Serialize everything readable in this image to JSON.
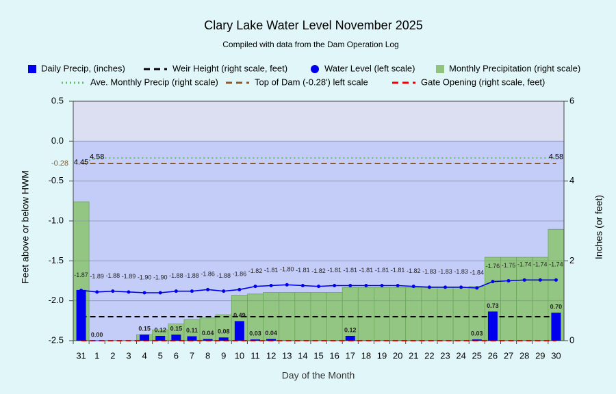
{
  "chart_data": {
    "type": "combo",
    "title": "Clary Lake Water Level November 2025",
    "subtitle": "Compiled with data from the Dam Operation Log",
    "x_label": "Day of the Month",
    "y_label": "Feet above or below HWM",
    "y2_label": "Inches (or feet)",
    "categories": [
      "31",
      "1",
      "2",
      "3",
      "4",
      "5",
      "6",
      "7",
      "8",
      "9",
      "10",
      "11",
      "12",
      "13",
      "14",
      "15",
      "16",
      "17",
      "18",
      "19",
      "20",
      "21",
      "22",
      "23",
      "24",
      "25",
      "26",
      "27",
      "28",
      "29",
      "30"
    ],
    "ylim": [
      -2.5,
      0.5
    ],
    "yticks": [
      -2.5,
      {
        "value": -2,
        "label": "-2.0"
      },
      -1.5,
      {
        "value": -1,
        "label": "-1.0"
      },
      -0.5,
      {
        "value": 0,
        "label": "0.0"
      },
      0.5
    ],
    "y2lim": [
      0,
      6
    ],
    "y2ticks": [
      0,
      2,
      4,
      6
    ],
    "grid": true,
    "series": [
      {
        "name": "Daily Precip, (inches)",
        "kind": "bar",
        "axis": "y2",
        "color": "#0000ee",
        "values": [
          1.27,
          0,
          null,
          null,
          0.15,
          0.12,
          0.15,
          0.11,
          0.04,
          0.08,
          0.49,
          0.03,
          0.04,
          null,
          null,
          null,
          null,
          0.12,
          null,
          null,
          null,
          null,
          null,
          null,
          null,
          0.03,
          0.73,
          null,
          null,
          null,
          0.7
        ],
        "value_labels": [
          null,
          "0.00",
          null,
          null,
          "0.15",
          "0.12",
          "0.15",
          "0.11",
          "0.04",
          "0.08",
          "0.49",
          "0.03",
          "0.04",
          null,
          null,
          null,
          null,
          "0.12",
          null,
          null,
          null,
          null,
          null,
          null,
          null,
          "0.03",
          "0.73",
          null,
          null,
          null,
          "0.70"
        ]
      },
      {
        "name": "Weir Height (right scale, feet)",
        "kind": "dash",
        "axis": "y2",
        "color": "#000000",
        "values": [
          0.6,
          0.6,
          0.6,
          0.6,
          0.6,
          0.6,
          0.6,
          0.6,
          0.6,
          0.6,
          0.6,
          0.6,
          0.6,
          0.6,
          0.6,
          0.6,
          0.6,
          0.6,
          0.6,
          0.6,
          0.6,
          0.6,
          0.6,
          0.6,
          0.6,
          0.6,
          0.6,
          0.6,
          0.6,
          0.6,
          0.6
        ]
      },
      {
        "name": "Water Level (left scale)",
        "kind": "marker-line",
        "color": "#0000ee",
        "values": [
          -1.87,
          -1.89,
          -1.88,
          -1.89,
          -1.9,
          -1.9,
          -1.88,
          -1.88,
          -1.86,
          -1.88,
          -1.86,
          -1.82,
          -1.81,
          -1.8,
          -1.81,
          -1.82,
          -1.81,
          -1.81,
          -1.81,
          -1.81,
          -1.81,
          -1.82,
          -1.83,
          -1.83,
          -1.83,
          -1.84,
          -1.76,
          -1.75,
          -1.74,
          -1.74,
          -1.74
        ],
        "value_labels": [
          "-1.87",
          "-1.89",
          "-1.88",
          "-1.89",
          "-1.90",
          "-1.90",
          "-1.88",
          "-1.88",
          "-1.86",
          "-1.88",
          "-1.86",
          "-1.82",
          "-1.81",
          "-1.80",
          "-1.81",
          "-1.82",
          "-1.81",
          "-1.81",
          "-1.81",
          "-1.81",
          "-1.81",
          "-1.82",
          "-1.83",
          "-1.83",
          "-1.83",
          "-1.84",
          "-1.76",
          "-1.75",
          "-1.74",
          "-1.74",
          "-1.74"
        ]
      },
      {
        "name": "Monthly Precipitation (right scale)",
        "kind": "step-area",
        "axis": "y2",
        "color": "#90c47c",
        "values": [
          3.48,
          0,
          0,
          0,
          0.15,
          0.27,
          0.42,
          0.53,
          0.57,
          0.65,
          1.14,
          1.17,
          1.21,
          1.21,
          1.21,
          1.21,
          1.21,
          1.33,
          1.33,
          1.33,
          1.33,
          1.33,
          1.33,
          1.33,
          1.33,
          1.36,
          2.09,
          2.09,
          2.09,
          2.09,
          2.79
        ]
      },
      {
        "name": "Ave. Monthly Precip (right scale)",
        "kind": "dot",
        "axis": "y2",
        "color": "#66bb66",
        "values": [
          4.45,
          4.58,
          4.58,
          4.58,
          4.58,
          4.58,
          4.58,
          4.58,
          4.58,
          4.58,
          4.58,
          4.58,
          4.58,
          4.58,
          4.58,
          4.58,
          4.58,
          4.58,
          4.58,
          4.58,
          4.58,
          4.58,
          4.58,
          4.58,
          4.58,
          4.58,
          4.58,
          4.58,
          4.58,
          4.58,
          4.58
        ],
        "value_labels": [
          "4.45",
          "4.58",
          null,
          null,
          null,
          null,
          null,
          null,
          null,
          null,
          null,
          null,
          null,
          null,
          null,
          null,
          null,
          null,
          null,
          null,
          null,
          null,
          null,
          null,
          null,
          null,
          null,
          null,
          null,
          null,
          "4.58"
        ]
      },
      {
        "name": "Top of Dam (-0.28') left scale",
        "kind": "dash",
        "color": "#8b5a2b",
        "values": [
          -0.28,
          -0.28,
          -0.28,
          -0.28,
          -0.28,
          -0.28,
          -0.28,
          -0.28,
          -0.28,
          -0.28,
          -0.28,
          -0.28,
          -0.28,
          -0.28,
          -0.28,
          -0.28,
          -0.28,
          -0.28,
          -0.28,
          -0.28,
          -0.28,
          -0.28,
          -0.28,
          -0.28,
          -0.28,
          -0.28,
          -0.28,
          -0.28,
          -0.28,
          -0.28,
          -0.28
        ],
        "value_labels": [
          "-0.28",
          null,
          null,
          null,
          null,
          null,
          null,
          null,
          null,
          null,
          null,
          null,
          null,
          null,
          null,
          null,
          null,
          null,
          null,
          null,
          null,
          null,
          null,
          null,
          null,
          null,
          null,
          null,
          null,
          null,
          null
        ]
      },
      {
        "name": "Gate Opening (right scale, feet)",
        "kind": "dash",
        "axis": "y2",
        "color": "#ee0000",
        "values": [
          0,
          0,
          0,
          0,
          0,
          0,
          0,
          0,
          0,
          0,
          0,
          0,
          0,
          0,
          0,
          0,
          0,
          0,
          0,
          0,
          0,
          0,
          0,
          0,
          0,
          0,
          0,
          0,
          0,
          0,
          0
        ]
      }
    ]
  }
}
